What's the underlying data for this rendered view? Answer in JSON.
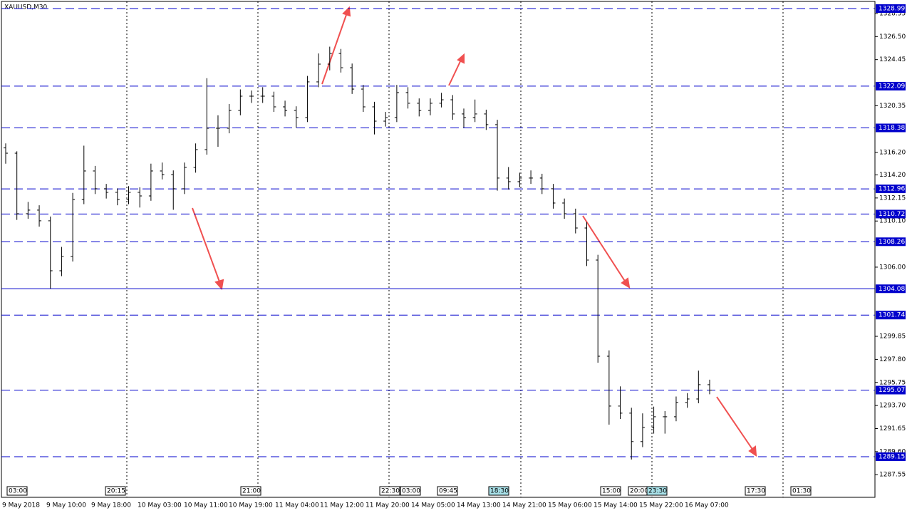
{
  "chart_data": {
    "type": "ohlc",
    "title": "XAUUSD,M30",
    "ylim": [
      1285.41,
      1329.75
    ],
    "yticks": [
      {
        "value": 1328.55,
        "label": "1328.55"
      },
      {
        "value": 1326.5,
        "label": "1326.50"
      },
      {
        "value": 1324.45,
        "label": "1324.45"
      },
      {
        "value": 1320.35,
        "label": "1320.35"
      },
      {
        "value": 1316.2,
        "label": "1316.20"
      },
      {
        "value": 1314.2,
        "label": "1314.20"
      },
      {
        "value": 1312.15,
        "label": "1312.15"
      },
      {
        "value": 1310.1,
        "label": "1310.10"
      },
      {
        "value": 1306,
        "label": "1306.00"
      },
      {
        "value": 1299.85,
        "label": "1299.85"
      },
      {
        "value": 1297.8,
        "label": "1297.80"
      },
      {
        "value": 1295.75,
        "label": "1295.75"
      },
      {
        "value": 1293.7,
        "label": "1293.70"
      },
      {
        "value": 1291.65,
        "label": "1291.65"
      },
      {
        "value": 1289.6,
        "label": "1289.60"
      },
      {
        "value": 1287.55,
        "label": "1287.55"
      }
    ],
    "levels": [
      1328.99,
      1322.09,
      1318.38,
      1312.96,
      1310.72,
      1308.26,
      1304.08,
      1301.74,
      1295.07,
      1289.15
    ],
    "level_styles": [
      "dashed",
      "dashed",
      "dashed",
      "dashed",
      "dashed",
      "dashed",
      "solid",
      "dashed",
      "dashed",
      "dashed"
    ],
    "x_labels": [
      "9 May 2018",
      "9 May 10:00",
      "9 May 18:00",
      "10 May 03:00",
      "10 May 11:00",
      "10 May 19:00",
      "11 May 04:00",
      "11 May 12:00",
      "11 May 20:00",
      "14 May 05:00",
      "14 May 13:00",
      "14 May 21:00",
      "15 May 06:00",
      "15 May 14:00",
      "15 May 22:00",
      "16 May 07:00"
    ],
    "time_markers": [
      "03:00",
      "20:15",
      "21:00",
      "22:30",
      "03:00",
      "09:45",
      "18:30",
      "15:00",
      "20:00",
      "23:30",
      "17:30",
      "01:30"
    ],
    "ohlc": [
      [
        1316.6,
        1317.0,
        1315.2,
        1316.13
      ],
      [
        1316.13,
        1316.3,
        1310.2,
        1310.75
      ],
      [
        1310.75,
        1311.8,
        1310.3,
        1311.07
      ],
      [
        1311.07,
        1311.5,
        1309.6,
        1310.12
      ],
      [
        1310.12,
        1310.5,
        1304.1,
        1305.68
      ],
      [
        1305.68,
        1307.8,
        1305.2,
        1306.95
      ],
      [
        1306.95,
        1312.6,
        1306.5,
        1312.02
      ],
      [
        1312.02,
        1316.8,
        1311.6,
        1314.55
      ],
      [
        1314.55,
        1315.0,
        1312.5,
        1312.97
      ],
      [
        1312.97,
        1313.4,
        1312.1,
        1312.65
      ],
      [
        1312.65,
        1313.0,
        1311.5,
        1312.02
      ],
      [
        1312.02,
        1313.2,
        1311.6,
        1312.65
      ],
      [
        1312.65,
        1313.1,
        1311.3,
        1312.33
      ],
      [
        1312.33,
        1315.2,
        1311.9,
        1314.55
      ],
      [
        1314.55,
        1315.3,
        1313.8,
        1314.23
      ],
      [
        1314.23,
        1314.6,
        1311.1,
        1312.97
      ],
      [
        1312.97,
        1315.3,
        1312.5,
        1314.87
      ],
      [
        1314.87,
        1317.0,
        1314.4,
        1316.45
      ],
      [
        1316.45,
        1322.8,
        1316.0,
        1318.35
      ],
      [
        1318.35,
        1319.5,
        1316.7,
        1318.35
      ],
      [
        1318.35,
        1320.5,
        1317.9,
        1319.93
      ],
      [
        1319.93,
        1321.8,
        1319.5,
        1321.2
      ],
      [
        1321.2,
        1321.7,
        1320.6,
        1321.2
      ],
      [
        1321.2,
        1322.0,
        1320.6,
        1321.2
      ],
      [
        1321.2,
        1321.6,
        1319.8,
        1320.25
      ],
      [
        1320.25,
        1320.8,
        1319.4,
        1319.93
      ],
      [
        1319.93,
        1320.3,
        1318.4,
        1319.3
      ],
      [
        1319.3,
        1323.0,
        1318.9,
        1322.47
      ],
      [
        1322.47,
        1325.0,
        1322.0,
        1324.05
      ],
      [
        1324.05,
        1325.6,
        1323.5,
        1325.0
      ],
      [
        1325.0,
        1325.4,
        1323.3,
        1323.73
      ],
      [
        1323.73,
        1324.1,
        1321.4,
        1321.83
      ],
      [
        1321.83,
        1322.2,
        1319.8,
        1320.25
      ],
      [
        1320.25,
        1320.7,
        1317.8,
        1318.98
      ],
      [
        1318.98,
        1319.8,
        1318.5,
        1319.3
      ],
      [
        1319.3,
        1322.2,
        1318.9,
        1321.52
      ],
      [
        1321.52,
        1322.0,
        1320.1,
        1320.57
      ],
      [
        1320.57,
        1321.0,
        1319.4,
        1319.93
      ],
      [
        1319.93,
        1321.0,
        1319.5,
        1320.57
      ],
      [
        1320.57,
        1321.5,
        1320.2,
        1320.88
      ],
      [
        1320.88,
        1321.3,
        1319.1,
        1319.62
      ],
      [
        1319.62,
        1320.1,
        1318.4,
        1319.3
      ],
      [
        1319.3,
        1320.9,
        1318.9,
        1319.62
      ],
      [
        1319.62,
        1320.0,
        1318.2,
        1318.67
      ],
      [
        1318.67,
        1319.1,
        1312.8,
        1313.92
      ],
      [
        1313.92,
        1314.9,
        1312.9,
        1313.6
      ],
      [
        1313.6,
        1314.4,
        1313.1,
        1313.92
      ],
      [
        1313.92,
        1314.6,
        1313.4,
        1313.92
      ],
      [
        1313.92,
        1314.3,
        1312.5,
        1312.97
      ],
      [
        1312.97,
        1313.4,
        1311.2,
        1311.7
      ],
      [
        1311.7,
        1312.1,
        1310.3,
        1310.75
      ],
      [
        1310.75,
        1311.2,
        1309.0,
        1309.48
      ],
      [
        1309.48,
        1310.0,
        1306.1,
        1306.63
      ],
      [
        1306.63,
        1307.1,
        1297.5,
        1298.08
      ],
      [
        1298.08,
        1298.6,
        1292.0,
        1293.65
      ],
      [
        1293.65,
        1295.4,
        1292.5,
        1293.02
      ],
      [
        1293.02,
        1293.5,
        1288.9,
        1290.49
      ],
      [
        1290.49,
        1293.0,
        1290.0,
        1291.75
      ],
      [
        1291.75,
        1293.6,
        1291.2,
        1292.7
      ],
      [
        1292.7,
        1293.2,
        1291.2,
        1292.7
      ],
      [
        1292.7,
        1294.5,
        1292.3,
        1293.97
      ],
      [
        1293.97,
        1294.8,
        1293.5,
        1294.28
      ],
      [
        1294.28,
        1296.8,
        1293.9,
        1295.55
      ],
      [
        1295.55,
        1296.0,
        1294.7,
        1295.07
      ]
    ],
    "bar_color": "#000000",
    "level_color": "#0000cc",
    "arrow_color": "#f05050"
  }
}
